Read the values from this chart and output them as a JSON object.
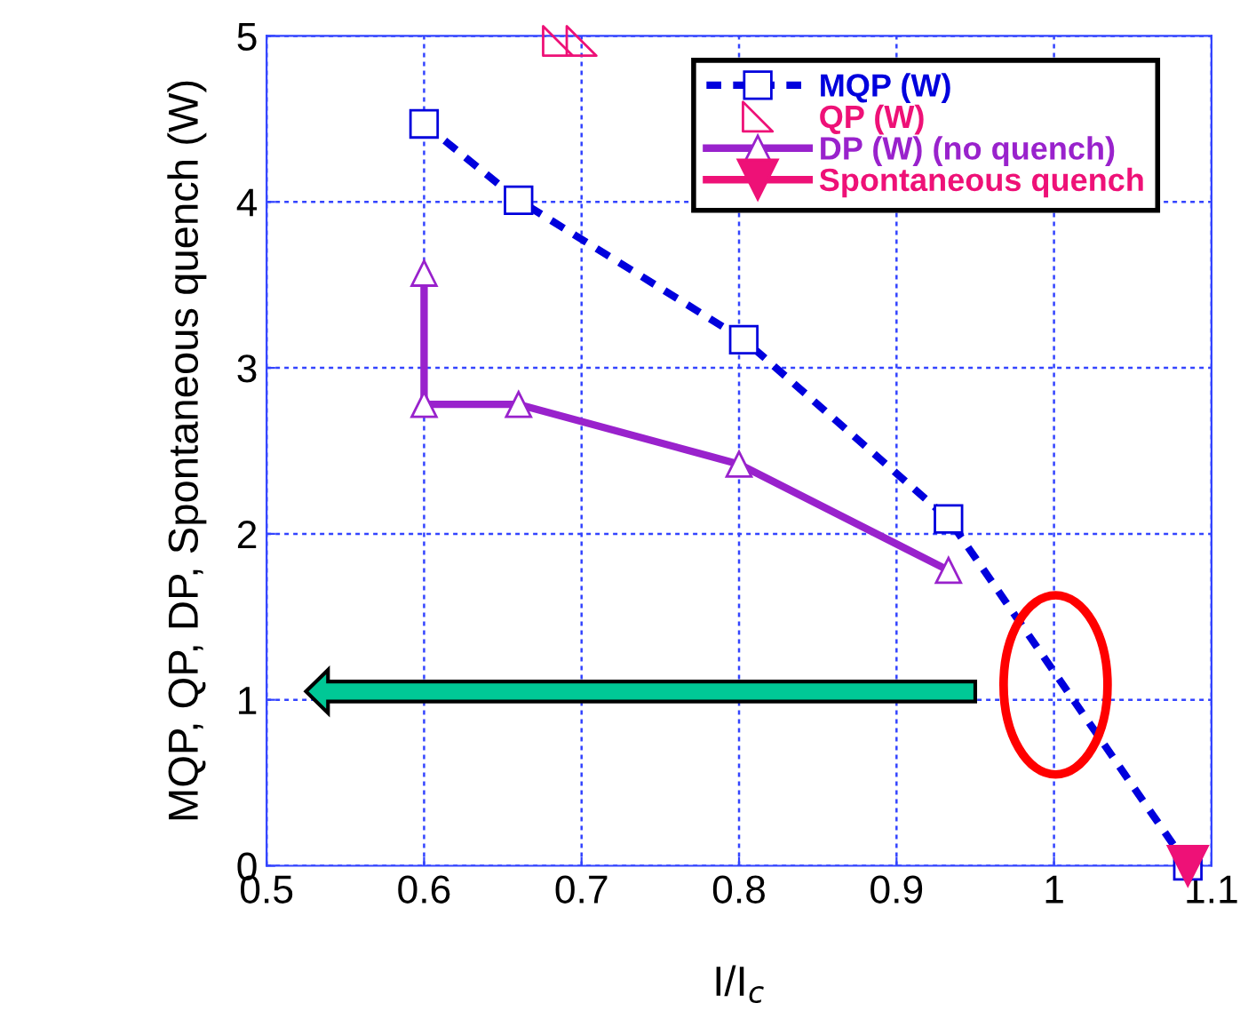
{
  "chart_data": {
    "type": "line",
    "xlabel": "I/I$_{c}$",
    "ylabel": "MQP, QP, DP, Spontaneous quench (W)",
    "xlim": [
      0.5,
      1.1
    ],
    "xticks": [
      0.5,
      0.6,
      0.7,
      0.8,
      0.9,
      1,
      1.1
    ],
    "ylim": [
      0,
      5
    ],
    "yticks": [
      0,
      1,
      2,
      3,
      4,
      5
    ],
    "grid": true,
    "legend": "top right",
    "series": [
      {
        "name": "MQP (W)",
        "color": "#0000dd",
        "x": [
          0.6,
          0.66,
          0.803,
          0.933,
          1.085
        ],
        "values": [
          4.47,
          4.01,
          3.17,
          2.09,
          0
        ],
        "marker": "square",
        "line_style": "dashed"
      },
      {
        "name": "QP (W)",
        "color": "#ee1177",
        "type": "scatter",
        "x": [
          0.685,
          0.7
        ],
        "values": [
          4.97,
          4.97
        ],
        "marker": "triangle"
      },
      {
        "name": "DP (W) (no quench)",
        "color": "#9922cc",
        "x": [
          0.6,
          0.6,
          0.66,
          0.8,
          0.933
        ],
        "values": [
          3.57,
          2.78,
          2.78,
          2.42,
          1.78
        ],
        "marker": "triangle",
        "line_style": "solid"
      },
      {
        "name": "Spontaneous quench",
        "color": "#ee1177",
        "x": [
          1.085
        ],
        "values": [
          0
        ],
        "marker": "triangle",
        "line_style": "solid"
      }
    ]
  }
}
